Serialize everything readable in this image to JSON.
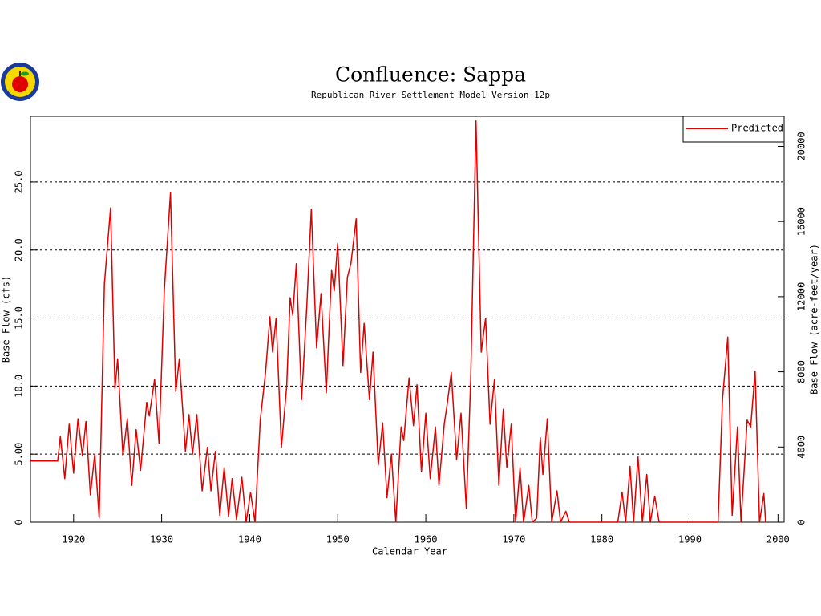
{
  "chart_data": {
    "type": "line",
    "title": "Confluence: Sappa",
    "subtitle": "Republican River Settlement Model Version 12p",
    "x_label": "Calendar Year",
    "y_label": "Base Flow (cfs)",
    "y2_label": "Base Flow (acre-feet/year)",
    "xlim": [
      1915.1,
      2000.7
    ],
    "ylim": [
      0,
      29.83
    ],
    "y2lim": [
      0,
      21600
    ],
    "xticks": [
      1920,
      1930,
      1940,
      1950,
      1960,
      1970,
      1980,
      1990,
      2000
    ],
    "yticks": [
      0,
      {
        "value": 5,
        "label": "5.00"
      },
      {
        "value": 10,
        "label": "10.0"
      },
      {
        "value": 15,
        "label": "15.0"
      },
      {
        "value": 20,
        "label": "20.0"
      },
      {
        "value": 25,
        "label": "25.0"
      }
    ],
    "y2ticks": [
      0,
      4000,
      8000,
      12000,
      16000,
      20000
    ],
    "grid": true,
    "legend_position": "upper right",
    "x": [
      1915.1,
      1918.2,
      1918.5,
      1919.0,
      1919.5,
      1920.0,
      1920.5,
      1921.0,
      1921.4,
      1921.9,
      1922.4,
      1922.9,
      1923.5,
      1924.2,
      1924.7,
      1925.0,
      1925.6,
      1926.1,
      1926.6,
      1927.1,
      1927.6,
      1928.3,
      1928.6,
      1929.2,
      1929.7,
      1930.3,
      1931.0,
      1931.6,
      1932.0,
      1932.7,
      1933.1,
      1933.5,
      1934.0,
      1934.6,
      1935.2,
      1935.6,
      1936.1,
      1936.6,
      1937.1,
      1937.6,
      1938.0,
      1938.5,
      1939.1,
      1939.6,
      1940.1,
      1940.6,
      1941.2,
      1941.8,
      1942.3,
      1942.6,
      1943.0,
      1943.6,
      1944.2,
      1944.6,
      1944.9,
      1945.3,
      1945.9,
      1946.5,
      1947.0,
      1947.6,
      1948.1,
      1948.7,
      1949.3,
      1949.6,
      1950.0,
      1950.6,
      1951.1,
      1951.5,
      1952.1,
      1952.6,
      1953.0,
      1953.6,
      1954.0,
      1954.6,
      1955.1,
      1955.6,
      1956.1,
      1956.6,
      1957.2,
      1957.5,
      1958.1,
      1958.6,
      1959.0,
      1959.5,
      1960.0,
      1960.5,
      1961.1,
      1961.5,
      1962.1,
      1962.4,
      1962.9,
      1963.5,
      1964.0,
      1964.6,
      1965.1,
      1965.7,
      1966.3,
      1966.8,
      1967.3,
      1967.8,
      1968.3,
      1968.8,
      1969.2,
      1969.7,
      1970.2,
      1970.7,
      1971.1,
      1971.7,
      1972.1,
      1972.6,
      1973.0,
      1973.3,
      1973.8,
      1974.3,
      1974.9,
      1975.3,
      1975.9,
      1976.3,
      1981.8,
      1982.3,
      1982.7,
      1983.2,
      1983.6,
      1984.1,
      1984.6,
      1985.1,
      1985.5,
      1986.0,
      1986.5,
      1993.2,
      1993.7,
      1994.3,
      1994.8,
      1995.4,
      1995.8,
      1996.5,
      1996.9,
      1997.4,
      1997.9,
      1998.4,
      1998.6
    ],
    "series": [
      {
        "name": "Predicted",
        "color": "#e00000",
        "values": [
          4.5,
          4.5,
          6.3,
          3.2,
          7.2,
          3.6,
          7.6,
          4.9,
          7.4,
          2.0,
          5.0,
          0.3,
          17.5,
          23.1,
          9.8,
          12.0,
          4.9,
          7.6,
          2.7,
          6.8,
          3.8,
          8.8,
          7.8,
          10.5,
          5.8,
          17.0,
          24.2,
          9.6,
          12.0,
          5.2,
          7.9,
          5.0,
          7.9,
          2.3,
          5.5,
          2.3,
          5.2,
          0.5,
          4.0,
          0.4,
          3.2,
          0.2,
          3.3,
          0,
          2.2,
          0,
          7.5,
          11.0,
          15.1,
          12.5,
          15.0,
          5.5,
          10.0,
          16.5,
          15.2,
          19.0,
          9.0,
          16.0,
          23.0,
          12.8,
          16.8,
          9.5,
          18.5,
          17.0,
          20.5,
          11.5,
          18.0,
          19.0,
          22.3,
          11.0,
          14.6,
          9.0,
          12.5,
          4.2,
          7.3,
          1.8,
          5.0,
          0,
          7.0,
          6.0,
          10.6,
          7.1,
          10.1,
          3.7,
          8.0,
          3.2,
          7.0,
          2.7,
          7.2,
          8.5,
          11.0,
          4.6,
          8.0,
          1.0,
          10.5,
          29.5,
          12.5,
          15.0,
          7.2,
          10.5,
          2.7,
          8.3,
          4.0,
          7.2,
          0,
          4.0,
          0,
          2.7,
          0,
          0.3,
          6.2,
          3.5,
          7.6,
          0,
          2.3,
          0,
          0.8,
          0,
          0,
          2.2,
          0,
          4.1,
          0,
          4.8,
          0,
          3.5,
          0,
          1.9,
          0,
          0,
          9.0,
          13.6,
          0.5,
          7.0,
          0,
          7.5,
          7.0,
          11.1,
          0,
          2.1,
          0
        ]
      }
    ]
  }
}
